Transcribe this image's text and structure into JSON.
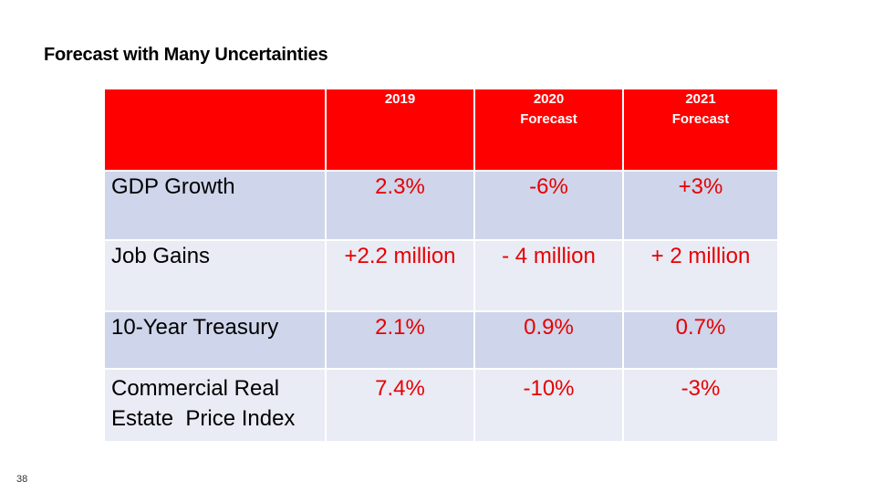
{
  "slide": {
    "title": "Forecast with Many Uncertainties",
    "number": "38"
  },
  "table": {
    "headers": [
      {
        "line1": "",
        "line2": ""
      },
      {
        "line1": "2019",
        "line2": ""
      },
      {
        "line1": "2020",
        "line2": "Forecast"
      },
      {
        "line1": "2021",
        "line2": "Forecast"
      }
    ],
    "rows": [
      {
        "label_line1": "GDP Growth",
        "label_line2": "",
        "values": [
          "2.3%",
          "-6%",
          "+3%"
        ]
      },
      {
        "label_line1": "Job Gains",
        "label_line2": "",
        "values": [
          "+2.2 million",
          "- 4 million",
          "+ 2 million"
        ]
      },
      {
        "label_line1": "10-Year Treasury",
        "label_line2": "",
        "values": [
          "2.1%",
          "0.9%",
          "0.7%"
        ]
      },
      {
        "label_line1": "Commercial Real",
        "label_line2": "Estate  Price Index",
        "values": [
          "7.4%",
          "-10%",
          "-3%"
        ]
      }
    ]
  },
  "colors": {
    "header_bg": "#ff0000",
    "row_dark": "#cfd5ea",
    "row_light": "#e9ebf5",
    "value_text": "#e60000"
  }
}
